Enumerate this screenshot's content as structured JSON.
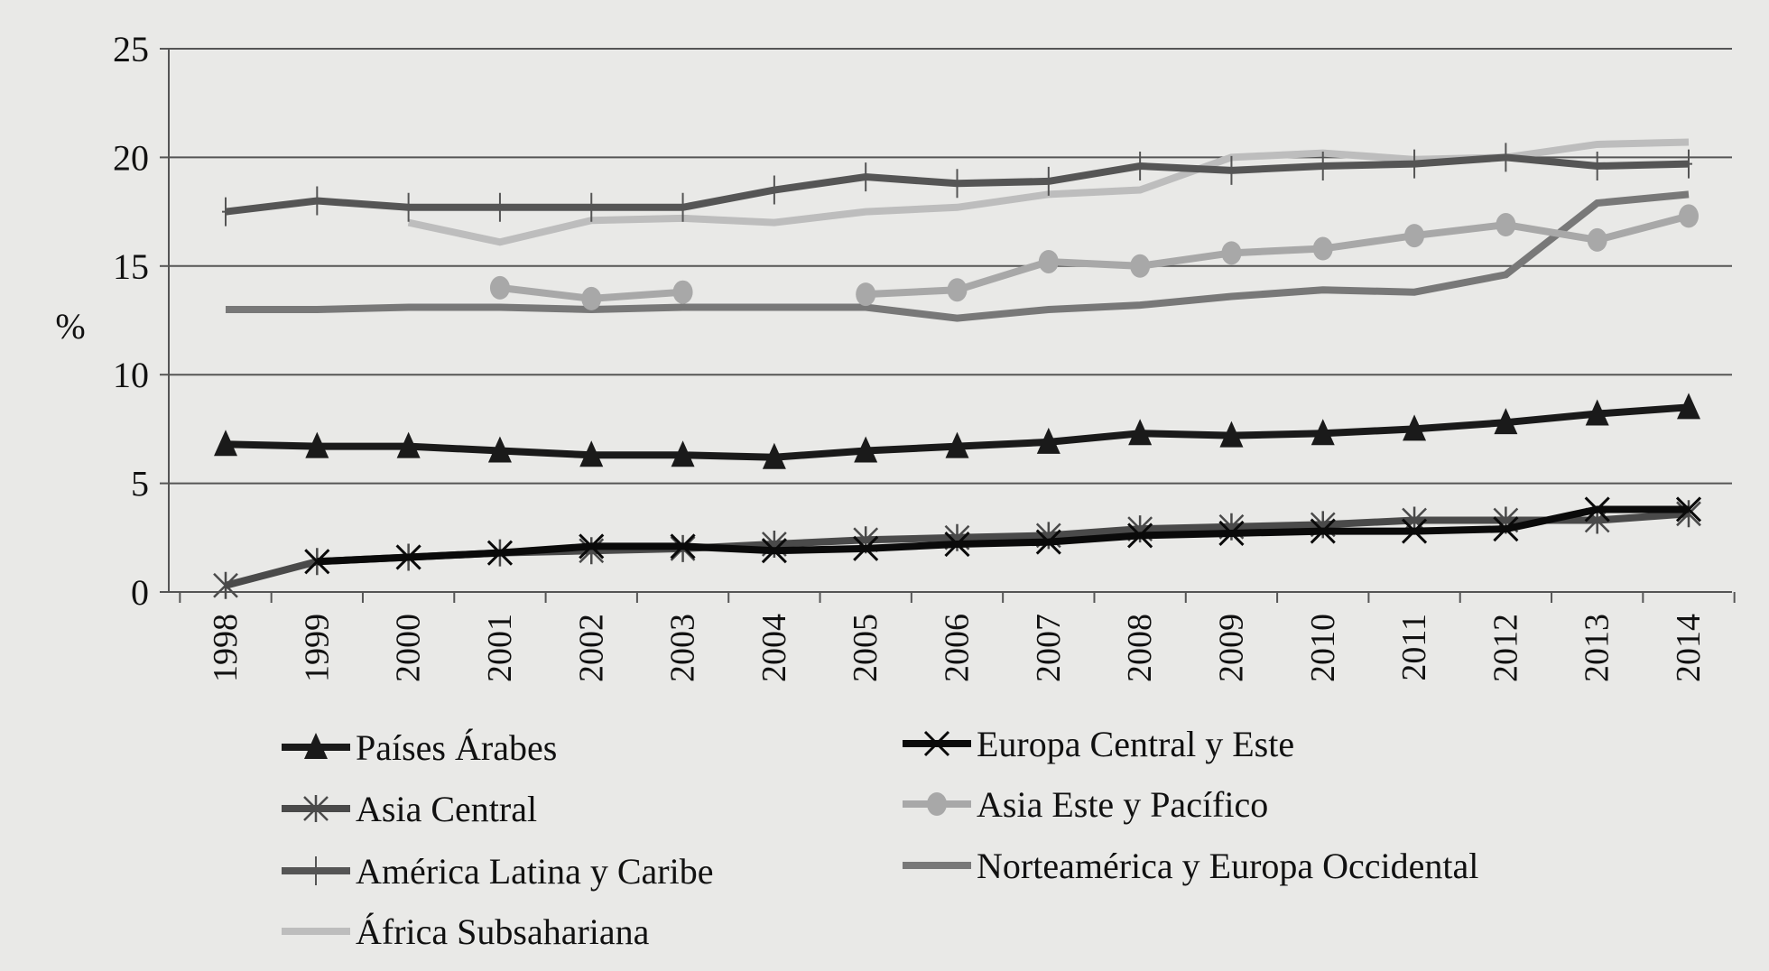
{
  "chart_data": {
    "type": "line",
    "title": "",
    "xlabel": "",
    "ylabel": "%",
    "ylim": [
      0,
      25
    ],
    "yticks": [
      0,
      5,
      10,
      15,
      20,
      25
    ],
    "grid": "horizontal",
    "legend_placement": "bottom",
    "x": [
      "1998",
      "1999",
      "2000",
      "2001",
      "2002",
      "2003",
      "2004",
      "2005",
      "2006",
      "2007",
      "2008",
      "2009",
      "2010",
      "2011",
      "2012",
      "2013",
      "2014"
    ],
    "series": [
      {
        "name": "Países Árabes",
        "marker": "triangle",
        "color": "#1a1a1a",
        "values": [
          6.8,
          6.7,
          6.7,
          6.5,
          6.3,
          6.3,
          6.2,
          6.5,
          6.7,
          6.9,
          7.3,
          7.2,
          7.3,
          7.5,
          7.8,
          8.2,
          8.5
        ]
      },
      {
        "name": "Europa Central y Este",
        "marker": "x",
        "color": "#0a0a0a",
        "values": [
          null,
          1.4,
          1.6,
          1.8,
          2.1,
          2.1,
          1.9,
          2.0,
          2.2,
          2.3,
          2.6,
          2.7,
          2.8,
          2.8,
          2.9,
          3.8,
          3.8
        ]
      },
      {
        "name": "Asia Central",
        "marker": "asterisk",
        "color": "#4a4a4a",
        "values": [
          0.3,
          1.4,
          1.6,
          1.8,
          1.9,
          2.0,
          2.2,
          2.4,
          2.5,
          2.6,
          2.9,
          3.0,
          3.1,
          3.3,
          3.3,
          3.3,
          3.6
        ]
      },
      {
        "name": "Asia Este y Pacífico",
        "marker": "circle",
        "color": "#a8a8a8",
        "values": [
          null,
          null,
          null,
          14.0,
          13.5,
          13.8,
          null,
          13.7,
          13.9,
          15.2,
          15.0,
          15.6,
          15.8,
          16.4,
          16.9,
          16.2,
          17.3
        ]
      },
      {
        "name": "América Latina y Caribe",
        "marker": "plus",
        "color": "#555555",
        "values": [
          17.5,
          18.0,
          17.7,
          17.7,
          17.7,
          17.7,
          18.5,
          19.1,
          18.8,
          18.9,
          19.6,
          19.4,
          19.6,
          19.7,
          20.0,
          19.6,
          19.7
        ]
      },
      {
        "name": "Norteamérica y Europa Occidental",
        "marker": "none",
        "color": "#787878",
        "values": [
          13.0,
          13.0,
          13.1,
          13.1,
          13.0,
          13.1,
          13.1,
          13.1,
          12.6,
          13.0,
          13.2,
          13.6,
          13.9,
          13.8,
          14.6,
          17.9,
          18.3
        ]
      },
      {
        "name": "África Subsahariana",
        "marker": "none",
        "color": "#bdbdbd",
        "values": [
          null,
          null,
          17.0,
          16.1,
          17.1,
          17.2,
          17.0,
          17.5,
          17.7,
          18.3,
          18.5,
          20.0,
          20.2,
          19.9,
          20.0,
          20.6,
          20.7
        ]
      }
    ]
  }
}
